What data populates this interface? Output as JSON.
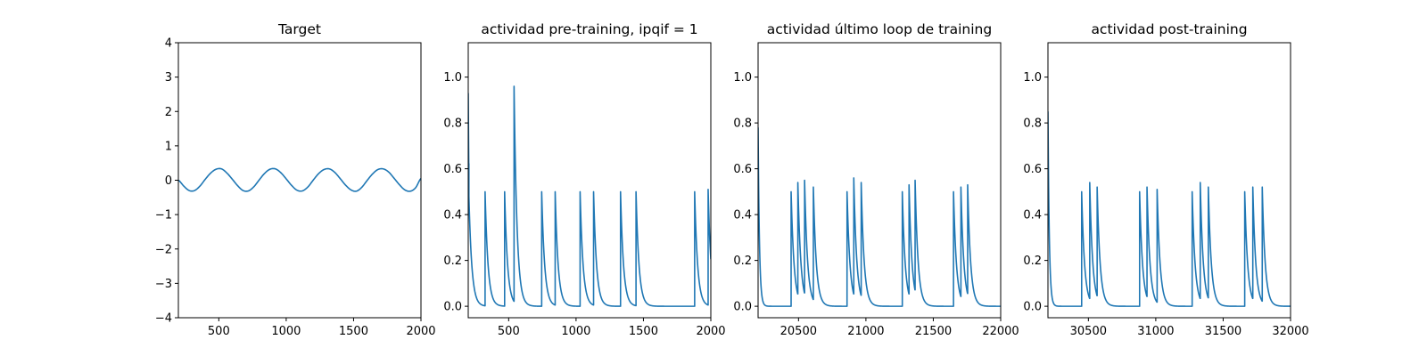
{
  "chart_data": [
    {
      "type": "line",
      "title": "Target",
      "xlabel": "",
      "ylabel": "",
      "xlim": [
        200,
        2000
      ],
      "ylim": [
        -4,
        4
      ],
      "xticks": [
        500,
        1000,
        1500,
        2000
      ],
      "xtick_labels": [
        "500",
        "1000",
        "1500",
        "2000"
      ],
      "yticks": [
        -4,
        -3,
        -2,
        -1,
        0,
        1,
        2,
        3,
        4
      ],
      "ytick_labels": [
        "−4",
        "−3",
        "−2",
        "−1",
        "0",
        "1",
        "2",
        "3",
        "4"
      ],
      "grid": false,
      "color": "#1f77b4",
      "series": [
        {
          "x": [
            200,
            240,
            280,
            320,
            360,
            400,
            440,
            480,
            520,
            560,
            600,
            640,
            680,
            720,
            760,
            800,
            840,
            880,
            920,
            960,
            1000,
            1040,
            1080,
            1120,
            1160,
            1200,
            1240,
            1280,
            1320,
            1360,
            1400,
            1440,
            1480,
            1520,
            1560,
            1600,
            1640,
            1680,
            1720,
            1760,
            1800,
            1840,
            1880,
            1920,
            1960,
            2000
          ],
          "values": [
            0,
            -0.17,
            -0.3,
            -0.3,
            -0.17,
            0.03,
            0.21,
            0.32,
            0.33,
            0.21,
            0.03,
            -0.16,
            -0.3,
            -0.31,
            -0.19,
            0.01,
            0.2,
            0.32,
            0.33,
            0.22,
            0.04,
            -0.15,
            -0.29,
            -0.31,
            -0.2,
            0.0,
            0.19,
            0.31,
            0.33,
            0.23,
            0.05,
            -0.14,
            -0.28,
            -0.32,
            -0.21,
            -0.01,
            0.18,
            0.31,
            0.33,
            0.24,
            0.06,
            -0.13,
            -0.28,
            -0.32,
            -0.22,
            0.05
          ]
        }
      ]
    },
    {
      "type": "line",
      "title": "actividad pre-training, ipqif = 1",
      "xlabel": "",
      "ylabel": "",
      "xlim": [
        200,
        2000
      ],
      "ylim": [
        -0.05,
        1.15
      ],
      "xticks": [
        500,
        1000,
        1500,
        2000
      ],
      "xtick_labels": [
        "500",
        "1000",
        "1500",
        "2000"
      ],
      "yticks": [
        0.0,
        0.2,
        0.4,
        0.6,
        0.8,
        1.0
      ],
      "ytick_labels": [
        "0.0",
        "0.2",
        "0.4",
        "0.6",
        "0.8",
        "1.0"
      ],
      "grid": false,
      "color": "#1f77b4",
      "initial_value": 0.93,
      "spikes": [
        {
          "x": 205,
          "peak": 0.48
        },
        {
          "x": 325,
          "peak": 0.5
        },
        {
          "x": 470,
          "peak": 0.5
        },
        {
          "x": 540,
          "peak": 0.96
        },
        {
          "x": 745,
          "peak": 0.5
        },
        {
          "x": 845,
          "peak": 0.5
        },
        {
          "x": 1030,
          "peak": 0.5
        },
        {
          "x": 1130,
          "peak": 0.5
        },
        {
          "x": 1330,
          "peak": 0.5
        },
        {
          "x": 1445,
          "peak": 0.5
        },
        {
          "x": 1880,
          "peak": 0.5
        },
        {
          "x": 1980,
          "peak": 0.51
        }
      ]
    },
    {
      "type": "line",
      "title": "actividad último loop de training",
      "xlabel": "",
      "ylabel": "",
      "xlim": [
        20200,
        22000
      ],
      "ylim": [
        -0.05,
        1.15
      ],
      "xticks": [
        20500,
        21000,
        21500,
        22000
      ],
      "xtick_labels": [
        "20500",
        "21000",
        "21500",
        "22000"
      ],
      "yticks": [
        0.0,
        0.2,
        0.4,
        0.6,
        0.8,
        1.0
      ],
      "ytick_labels": [
        "0.0",
        "0.2",
        "0.4",
        "0.6",
        "0.8",
        "1.0"
      ],
      "grid": false,
      "color": "#1f77b4",
      "initial_value": 0.78,
      "spikes": [
        {
          "x": 20445,
          "peak": 0.5
        },
        {
          "x": 20495,
          "peak": 0.54
        },
        {
          "x": 20545,
          "peak": 0.55
        },
        {
          "x": 20610,
          "peak": 0.52
        },
        {
          "x": 20860,
          "peak": 0.5
        },
        {
          "x": 20910,
          "peak": 0.56
        },
        {
          "x": 20965,
          "peak": 0.54
        },
        {
          "x": 21270,
          "peak": 0.5
        },
        {
          "x": 21320,
          "peak": 0.53
        },
        {
          "x": 21365,
          "peak": 0.55
        },
        {
          "x": 21650,
          "peak": 0.5
        },
        {
          "x": 21705,
          "peak": 0.52
        },
        {
          "x": 21755,
          "peak": 0.53
        }
      ]
    },
    {
      "type": "line",
      "title": "actividad post-training",
      "xlabel": "",
      "ylabel": "",
      "xlim": [
        30200,
        32000
      ],
      "ylim": [
        -0.05,
        1.15
      ],
      "xticks": [
        30500,
        31000,
        31500,
        32000
      ],
      "xtick_labels": [
        "30500",
        "31000",
        "31500",
        "32000"
      ],
      "yticks": [
        0.0,
        0.2,
        0.4,
        0.6,
        0.8,
        1.0
      ],
      "ytick_labels": [
        "0.0",
        "0.2",
        "0.4",
        "0.6",
        "0.8",
        "1.0"
      ],
      "grid": false,
      "color": "#1f77b4",
      "initial_value": 0.85,
      "spikes": [
        {
          "x": 30450,
          "peak": 0.5
        },
        {
          "x": 30510,
          "peak": 0.54
        },
        {
          "x": 30565,
          "peak": 0.52
        },
        {
          "x": 30880,
          "peak": 0.5
        },
        {
          "x": 30935,
          "peak": 0.52
        },
        {
          "x": 31010,
          "peak": 0.51
        },
        {
          "x": 31270,
          "peak": 0.5
        },
        {
          "x": 31330,
          "peak": 0.54
        },
        {
          "x": 31390,
          "peak": 0.52
        },
        {
          "x": 31660,
          "peak": 0.5
        },
        {
          "x": 31720,
          "peak": 0.52
        },
        {
          "x": 31790,
          "peak": 0.52
        }
      ]
    }
  ]
}
